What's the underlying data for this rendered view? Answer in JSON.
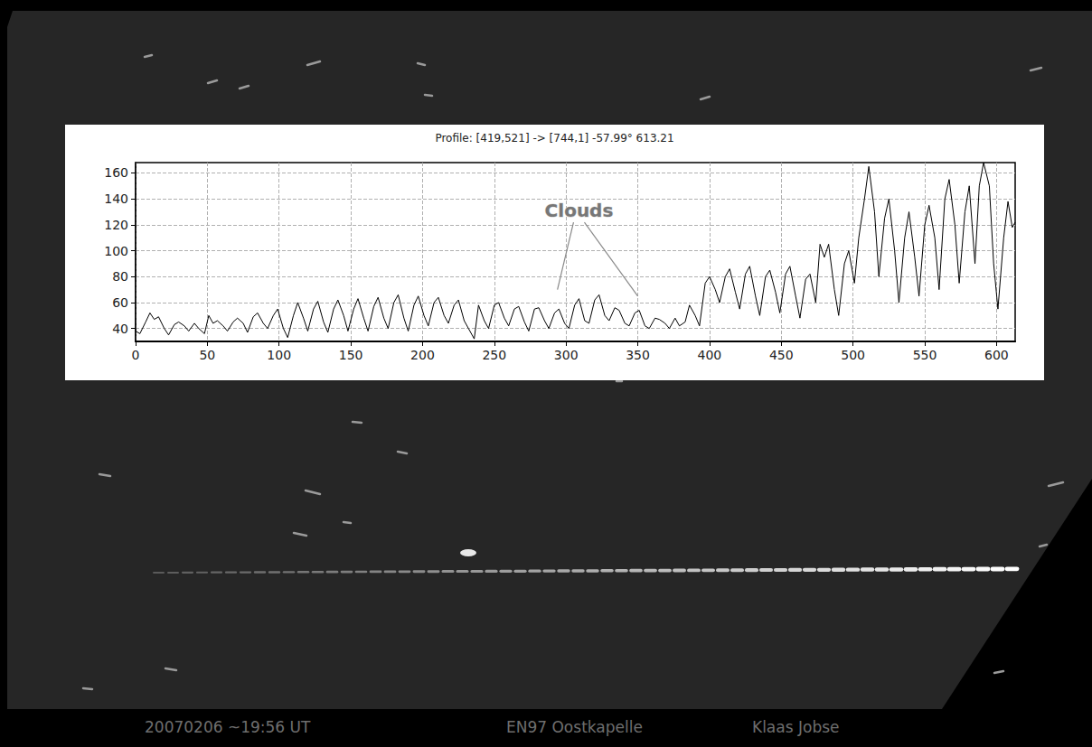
{
  "chart_data": {
    "type": "line",
    "title": "Profile: [419,521] -> [744,1] -57.99° 613.21",
    "color": "#000000",
    "x": [
      0,
      3,
      7,
      10,
      13,
      16,
      20,
      23,
      27,
      30,
      34,
      37,
      41,
      44,
      48,
      51,
      54,
      57,
      61,
      64,
      68,
      71,
      75,
      78,
      82,
      85,
      89,
      92,
      96,
      99,
      103,
      106,
      110,
      113,
      117,
      120,
      124,
      127,
      131,
      134,
      138,
      141,
      145,
      148,
      152,
      155,
      159,
      162,
      166,
      169,
      173,
      176,
      180,
      183,
      187,
      190,
      194,
      197,
      201,
      204,
      208,
      211,
      215,
      218,
      222,
      225,
      229,
      232,
      236,
      239,
      243,
      246,
      250,
      253,
      257,
      260,
      264,
      267,
      271,
      274,
      278,
      281,
      285,
      288,
      292,
      295,
      299,
      302,
      306,
      309,
      313,
      316,
      320,
      323,
      327,
      330,
      334,
      337,
      341,
      344,
      348,
      351,
      355,
      358,
      362,
      365,
      369,
      372,
      376,
      379,
      383,
      386,
      390,
      393,
      397,
      400,
      404,
      407,
      411,
      414,
      418,
      421,
      425,
      428,
      432,
      435,
      439,
      442,
      446,
      449,
      453,
      456,
      460,
      463,
      467,
      470,
      474,
      477,
      480,
      483,
      487,
      490,
      494,
      497,
      501,
      504,
      508,
      511,
      515,
      518,
      522,
      525,
      529,
      532,
      536,
      539,
      543,
      546,
      550,
      553,
      557,
      560,
      564,
      567,
      571,
      574,
      578,
      581,
      585,
      588,
      591,
      595,
      598,
      601,
      605,
      608,
      611,
      613
    ],
    "values": [
      38,
      36,
      45,
      52,
      47,
      49,
      40,
      35,
      43,
      45,
      42,
      38,
      44,
      40,
      36,
      50,
      44,
      46,
      42,
      38,
      45,
      48,
      44,
      37,
      49,
      52,
      44,
      40,
      50,
      55,
      40,
      33,
      50,
      60,
      48,
      38,
      55,
      61,
      45,
      37,
      55,
      62,
      50,
      38,
      55,
      63,
      48,
      38,
      57,
      64,
      48,
      40,
      60,
      66,
      48,
      38,
      58,
      65,
      50,
      42,
      60,
      64,
      50,
      44,
      58,
      62,
      46,
      40,
      32,
      58,
      46,
      40,
      58,
      60,
      48,
      42,
      55,
      57,
      45,
      38,
      55,
      56,
      46,
      40,
      52,
      55,
      44,
      40,
      58,
      63,
      46,
      44,
      62,
      66,
      50,
      46,
      56,
      54,
      44,
      42,
      52,
      54,
      42,
      40,
      48,
      47,
      44,
      40,
      48,
      42,
      45,
      58,
      50,
      42,
      75,
      80,
      70,
      60,
      80,
      86,
      68,
      55,
      82,
      88,
      65,
      50,
      80,
      85,
      68,
      52,
      82,
      88,
      65,
      48,
      78,
      82,
      60,
      105,
      95,
      105,
      70,
      50,
      90,
      100,
      75,
      110,
      140,
      165,
      130,
      80,
      125,
      140,
      100,
      60,
      110,
      130,
      95,
      65,
      120,
      135,
      110,
      70,
      140,
      155,
      120,
      75,
      130,
      150,
      90,
      150,
      168,
      150,
      90,
      55,
      110,
      138,
      118,
      122
    ],
    "xlim": [
      0,
      613
    ],
    "ylim": [
      30,
      168
    ],
    "xticks": [
      0,
      50,
      100,
      150,
      200,
      250,
      300,
      350,
      400,
      450,
      500,
      550,
      600
    ],
    "yticks": [
      40,
      60,
      80,
      100,
      120,
      140,
      160
    ],
    "grid": true,
    "annotations": [
      {
        "text": "Clouds",
        "x": 309,
        "y": 131,
        "points": [
          [
            294,
            70
          ],
          [
            350,
            65
          ]
        ]
      }
    ]
  },
  "captions": [
    "20070206  ~19:56 UT",
    "EN97 Oostkapelle",
    "Klaas Jobse"
  ]
}
